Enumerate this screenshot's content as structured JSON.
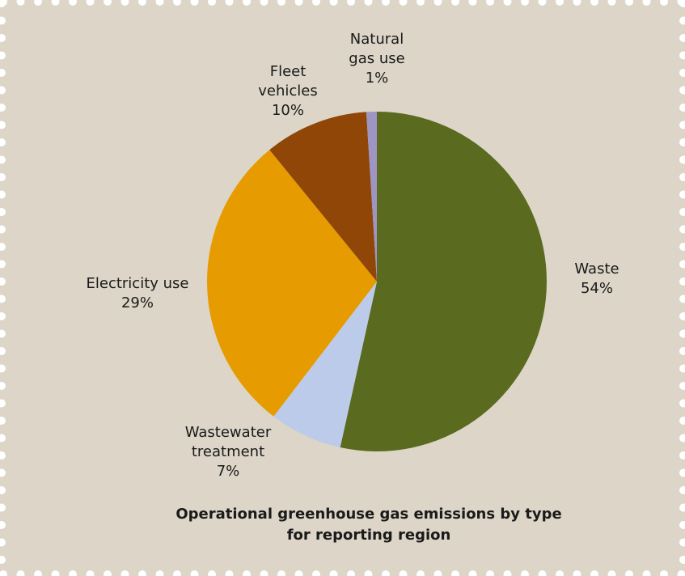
{
  "chart_data": {
    "type": "pie",
    "title_lines": [
      "Operational greenhouse gas emissions by type",
      "for reporting region"
    ],
    "slices": [
      {
        "label_lines": [
          "Waste"
        ],
        "percent_label": "54%",
        "value": 54,
        "color": "#5a6a1e"
      },
      {
        "label_lines": [
          "Wastewater",
          "treatment"
        ],
        "percent_label": "7%",
        "value": 7,
        "color": "#bccbe9"
      },
      {
        "label_lines": [
          "Electricity use"
        ],
        "percent_label": "29%",
        "value": 29,
        "color": "#e69c00"
      },
      {
        "label_lines": [
          "Fleet",
          "vehicles"
        ],
        "percent_label": "10%",
        "value": 10,
        "color": "#8f4606"
      },
      {
        "label_lines": [
          "Natural",
          "gas use"
        ],
        "percent_label": "1%",
        "value": 1,
        "color": "#9e95c3"
      }
    ],
    "start_angle_deg": 0,
    "direction": "clockwise",
    "legend": "none",
    "background_color": "#dcd5c8",
    "border_dot_color": "#ffffff"
  }
}
